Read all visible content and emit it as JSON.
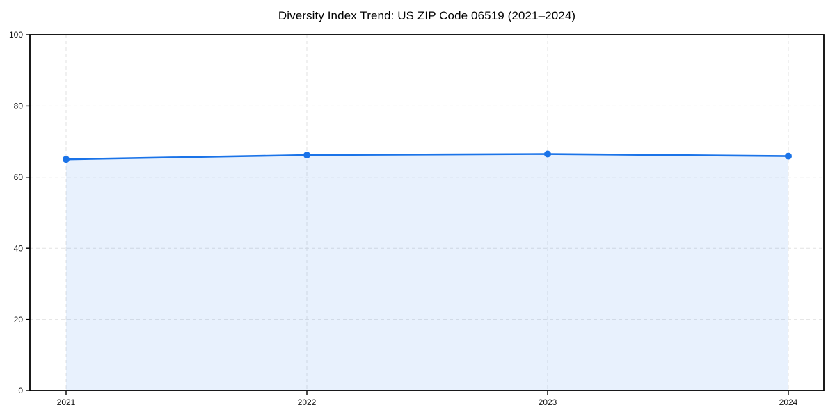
{
  "page": {
    "title": "Diversity Index Trend: US ZIP Code 06519 (2021–2024)"
  },
  "chart_data": {
    "type": "area",
    "title": "Diversity Index Trend: US ZIP Code 06519 (2021–2024)",
    "series_name": "Diversity Index",
    "categories": [
      "2021",
      "2022",
      "2023",
      "2024"
    ],
    "values": [
      65.0,
      66.2,
      66.5,
      65.9
    ],
    "xlabel": "",
    "ylabel": "",
    "ylim": [
      0,
      100
    ],
    "yticks": [
      0,
      20,
      40,
      60,
      80,
      100
    ],
    "grid": true,
    "grid_style": "dashed",
    "legend_position": "none",
    "marker": "circle",
    "colors": {
      "line": "#1a73e8",
      "fill": "rgba(26,115,232,0.10)",
      "axis": "#000000",
      "grid": "#e2e2e2",
      "background": "#ffffff"
    }
  }
}
